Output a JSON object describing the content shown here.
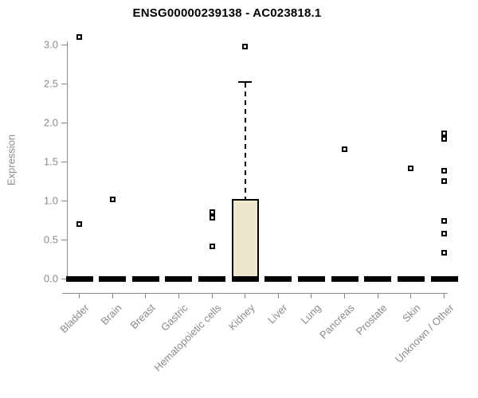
{
  "chart_data": {
    "type": "boxplot",
    "title": "ENSG00000239138 - AC023818.1",
    "ylabel": "Expression",
    "xlabel": "",
    "ylim": [
      0.0,
      3.0
    ],
    "yticks": [
      0.0,
      0.5,
      1.0,
      1.5,
      2.0,
      2.5,
      3.0
    ],
    "grid": false,
    "legend": false,
    "categories": [
      "Bladder",
      "Brain",
      "Breast",
      "Gastric",
      "Hematopoietic cells",
      "Kidney",
      "Liver",
      "Lung",
      "Pancreas",
      "Prostate",
      "Skin",
      "Unknown / Other"
    ],
    "boxes": [
      {
        "category": "Bladder",
        "q1": 0,
        "median": 0,
        "q3": 0,
        "whisker_low": 0,
        "whisker_high": 0,
        "outliers": [
          3.1,
          0.7
        ]
      },
      {
        "category": "Brain",
        "q1": 0,
        "median": 0,
        "q3": 0,
        "whisker_low": 0,
        "whisker_high": 0,
        "outliers": [
          1.02
        ]
      },
      {
        "category": "Breast",
        "q1": 0,
        "median": 0,
        "q3": 0,
        "whisker_low": 0,
        "whisker_high": 0,
        "outliers": []
      },
      {
        "category": "Gastric",
        "q1": 0,
        "median": 0,
        "q3": 0,
        "whisker_low": 0,
        "whisker_high": 0,
        "outliers": []
      },
      {
        "category": "Hematopoietic cells",
        "q1": 0,
        "median": 0,
        "q3": 0,
        "whisker_low": 0,
        "whisker_high": 0,
        "outliers": [
          0.85,
          0.78,
          0.41
        ]
      },
      {
        "category": "Kidney",
        "q1": 0,
        "median": 0,
        "q3": 1.02,
        "whisker_low": 0,
        "whisker_high": 2.52,
        "outliers": [
          2.97
        ]
      },
      {
        "category": "Liver",
        "q1": 0,
        "median": 0,
        "q3": 0,
        "whisker_low": 0,
        "whisker_high": 0,
        "outliers": []
      },
      {
        "category": "Lung",
        "q1": 0,
        "median": 0,
        "q3": 0,
        "whisker_low": 0,
        "whisker_high": 0,
        "outliers": []
      },
      {
        "category": "Pancreas",
        "q1": 0,
        "median": 0,
        "q3": 0,
        "whisker_low": 0,
        "whisker_high": 0,
        "outliers": [
          1.66
        ]
      },
      {
        "category": "Prostate",
        "q1": 0,
        "median": 0,
        "q3": 0,
        "whisker_low": 0,
        "whisker_high": 0,
        "outliers": []
      },
      {
        "category": "Skin",
        "q1": 0,
        "median": 0,
        "q3": 0,
        "whisker_low": 0,
        "whisker_high": 0,
        "outliers": [
          1.41
        ]
      },
      {
        "category": "Unknown / Other",
        "q1": 0,
        "median": 0,
        "q3": 0,
        "whisker_low": 0,
        "whisker_high": 0,
        "outliers": [
          1.86,
          1.79,
          1.38,
          1.25,
          0.74,
          0.58,
          0.33
        ]
      }
    ],
    "colors": {
      "box_fill": "#ede8cd",
      "box_border": "#000000",
      "median": "#000000",
      "outlier": "#000000",
      "axis": "#8a8a8a",
      "tick_text": "#8a8a8a",
      "title_text": "#000000",
      "background": "#ffffff"
    }
  }
}
